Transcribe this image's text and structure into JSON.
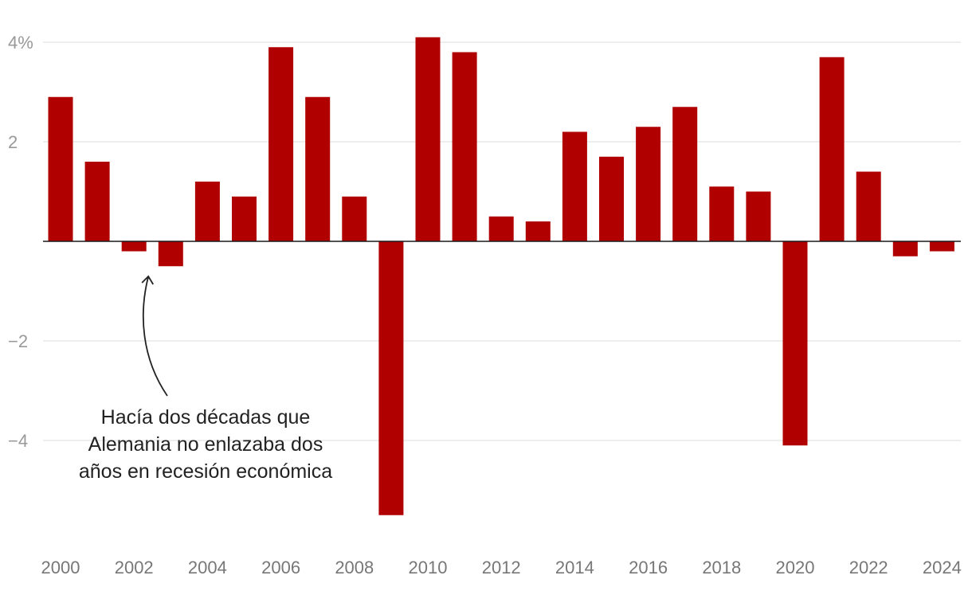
{
  "chart_data": {
    "type": "bar",
    "title": "",
    "xlabel": "",
    "ylabel": "",
    "bar_color": "#b00000",
    "ylim": [
      -6,
      4.2
    ],
    "yticks": [
      {
        "value": 4,
        "label": "4%"
      },
      {
        "value": 2,
        "label": "2"
      },
      {
        "value": -2,
        "label": "−2"
      },
      {
        "value": -4,
        "label": "−4"
      }
    ],
    "categories": [
      "2000",
      "2001",
      "2002",
      "2003",
      "2004",
      "2005",
      "2006",
      "2007",
      "2008",
      "2009",
      "2010",
      "2011",
      "2012",
      "2013",
      "2014",
      "2015",
      "2016",
      "2017",
      "2018",
      "2019",
      "2020",
      "2021",
      "2022",
      "2023",
      "2024"
    ],
    "values": [
      2.9,
      1.6,
      -0.2,
      -0.5,
      1.2,
      0.9,
      3.9,
      2.9,
      0.9,
      -5.5,
      4.1,
      3.8,
      0.5,
      0.4,
      2.2,
      1.7,
      2.3,
      2.7,
      1.1,
      1.0,
      -4.1,
      3.7,
      1.4,
      -0.3,
      -0.2
    ],
    "xtick_labels": [
      "2000",
      "2002",
      "2004",
      "2006",
      "2008",
      "2010",
      "2012",
      "2014",
      "2016",
      "2018",
      "2020",
      "2022",
      "2024"
    ],
    "annotation": {
      "lines": [
        "Hacía dos décadas que",
        "Alemania no enlazaba dos",
        "años en recesión económica"
      ],
      "target_category": "2002"
    }
  }
}
